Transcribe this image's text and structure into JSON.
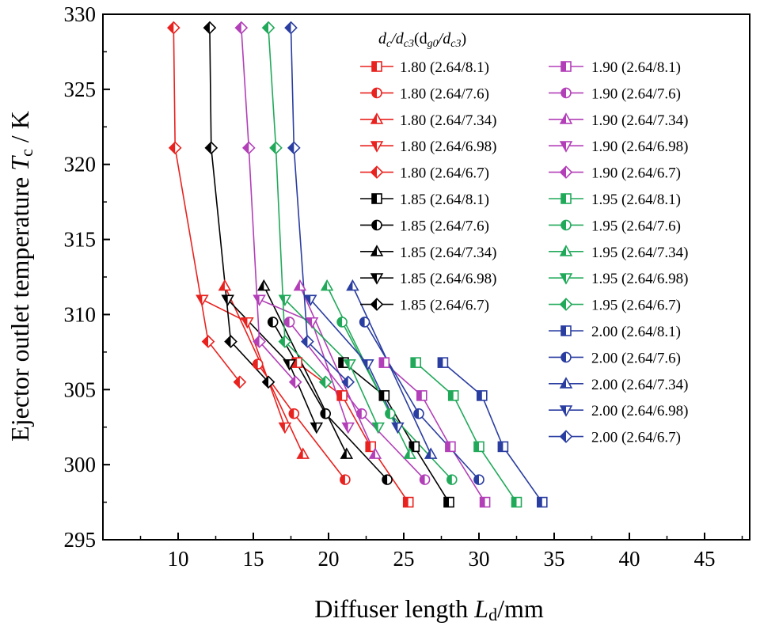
{
  "chart_data": {
    "type": "line",
    "xlabel": "Diffuser length L_d/mm",
    "xlabel_prefix": "Diffuser length ",
    "xlabel_var": "L",
    "xlabel_sub": "d",
    "xlabel_suffix": "/mm",
    "ylabel": "Ejector outlet temperature T_c / K",
    "ylabel_prefix": "Ejector outlet temperature ",
    "ylabel_var": "T",
    "ylabel_sub": "c",
    "ylabel_suffix": " / K",
    "xlim": [
      5,
      48
    ],
    "ylim": [
      295,
      330
    ],
    "xticks": [
      10,
      15,
      20,
      25,
      30,
      35,
      40,
      45
    ],
    "yticks": [
      295,
      300,
      305,
      310,
      315,
      320,
      325,
      330
    ],
    "legend_title": "dc/dc3(dg0/dc3)",
    "legend_title_parts": {
      "a": "d",
      "a_sub": "c",
      "b": "/d",
      "b_sub": "c3",
      "c": "(d",
      "c_sub": "g0",
      "d": "/d",
      "d_sub": "c3",
      "e": ")"
    },
    "colors": {
      "1.80": "#e8221f",
      "1.85": "#000000",
      "1.90": "#b23fb8",
      "1.95": "#21a95a",
      "2.00": "#2a3da0"
    },
    "series": [
      {
        "name": "1.80 (2.64/8.1)",
        "group": "1.80",
        "marker": "square",
        "x": [
          17.9,
          20.9,
          22.8,
          25.3
        ],
        "y": [
          306.8,
          304.6,
          301.2,
          297.5
        ]
      },
      {
        "name": "1.80 (2.64/7.6)",
        "group": "1.80",
        "marker": "circle",
        "x": [
          15.3,
          17.7,
          21.1
        ],
        "y": [
          306.7,
          303.4,
          299.0
        ]
      },
      {
        "name": "1.80 (2.64/7.34)",
        "group": "1.80",
        "marker": "triangle-up",
        "x": [
          13.1,
          18.3
        ],
        "y": [
          311.9,
          300.7
        ]
      },
      {
        "name": "1.80 (2.64/6.98)",
        "group": "1.80",
        "marker": "triangle-down",
        "x": [
          11.6,
          14.6,
          17.1
        ],
        "y": [
          311.0,
          309.5,
          302.5
        ]
      },
      {
        "name": "1.80 (2.64/6.7)",
        "group": "1.80",
        "marker": "diamond",
        "x": [
          9.7,
          9.8,
          12.0,
          14.1
        ],
        "y": [
          329.1,
          321.1,
          308.2,
          305.5
        ]
      },
      {
        "name": "1.85 (2.64/8.1)",
        "group": "1.85",
        "marker": "square",
        "x": [
          21.0,
          23.7,
          25.7,
          28.0
        ],
        "y": [
          306.8,
          304.6,
          301.2,
          297.5
        ]
      },
      {
        "name": "1.85 (2.64/7.6)",
        "group": "1.85",
        "marker": "circle",
        "x": [
          16.3,
          19.8,
          23.9
        ],
        "y": [
          309.5,
          303.4,
          299.0
        ]
      },
      {
        "name": "1.85 (2.64/7.34)",
        "group": "1.85",
        "marker": "triangle-up",
        "x": [
          15.7,
          21.2
        ],
        "y": [
          311.9,
          300.7
        ]
      },
      {
        "name": "1.85 (2.64/6.98)",
        "group": "1.85",
        "marker": "triangle-down",
        "x": [
          13.3,
          17.4,
          19.2
        ],
        "y": [
          311.0,
          306.7,
          302.5
        ]
      },
      {
        "name": "1.85 (2.64/6.7)",
        "group": "1.85",
        "marker": "diamond",
        "x": [
          12.1,
          12.2,
          13.5,
          16.0
        ],
        "y": [
          329.1,
          321.1,
          308.2,
          305.5
        ]
      },
      {
        "name": "1.90 (2.64/8.1)",
        "group": "1.90",
        "marker": "square",
        "x": [
          23.7,
          26.2,
          28.1,
          30.4
        ],
        "y": [
          306.8,
          304.6,
          301.2,
          297.5
        ]
      },
      {
        "name": "1.90 (2.64/7.6)",
        "group": "1.90",
        "marker": "circle",
        "x": [
          17.4,
          22.2,
          26.4
        ],
        "y": [
          309.5,
          303.4,
          299.0
        ]
      },
      {
        "name": "1.90 (2.64/7.34)",
        "group": "1.90",
        "marker": "triangle-up",
        "x": [
          18.1,
          23.1
        ],
        "y": [
          311.9,
          300.7
        ]
      },
      {
        "name": "1.90 (2.64/6.98)",
        "group": "1.90",
        "marker": "triangle-down",
        "x": [
          15.4,
          18.9,
          21.3
        ],
        "y": [
          311.0,
          309.5,
          302.5
        ]
      },
      {
        "name": "1.90 (2.64/6.7)",
        "group": "1.90",
        "marker": "diamond",
        "x": [
          14.2,
          14.7,
          15.4,
          17.8
        ],
        "y": [
          329.1,
          321.1,
          308.2,
          305.5
        ]
      },
      {
        "name": "1.95 (2.64/8.1)",
        "group": "1.95",
        "marker": "square",
        "x": [
          25.8,
          28.3,
          30.0,
          32.5
        ],
        "y": [
          306.8,
          304.6,
          301.2,
          297.5
        ]
      },
      {
        "name": "1.95 (2.64/7.6)",
        "group": "1.95",
        "marker": "circle",
        "x": [
          20.9,
          24.1,
          28.2
        ],
        "y": [
          309.5,
          303.4,
          299.0
        ]
      },
      {
        "name": "1.95 (2.64/7.34)",
        "group": "1.95",
        "marker": "triangle-up",
        "x": [
          19.9,
          25.4
        ],
        "y": [
          311.9,
          300.7
        ]
      },
      {
        "name": "1.95 (2.64/6.98)",
        "group": "1.95",
        "marker": "triangle-down",
        "x": [
          17.1,
          21.4,
          23.3
        ],
        "y": [
          311.0,
          306.7,
          302.5
        ]
      },
      {
        "name": "1.95 (2.64/6.7)",
        "group": "1.95",
        "marker": "diamond",
        "x": [
          16.0,
          16.5,
          17.1,
          19.8
        ],
        "y": [
          329.1,
          321.1,
          308.2,
          305.5
        ]
      },
      {
        "name": "2.00 (2.64/8.1)",
        "group": "2.00",
        "marker": "square",
        "x": [
          27.6,
          30.2,
          31.6,
          34.2
        ],
        "y": [
          306.8,
          304.6,
          301.2,
          297.5
        ]
      },
      {
        "name": "2.00 (2.64/7.6)",
        "group": "2.00",
        "marker": "circle",
        "x": [
          22.4,
          26.0,
          30.0
        ],
        "y": [
          309.5,
          303.4,
          299.0
        ]
      },
      {
        "name": "2.00 (2.64/7.34)",
        "group": "2.00",
        "marker": "triangle-up",
        "x": [
          21.6,
          26.8
        ],
        "y": [
          311.9,
          300.7
        ]
      },
      {
        "name": "2.00 (2.64/6.98)",
        "group": "2.00",
        "marker": "triangle-down",
        "x": [
          18.8,
          22.6,
          24.6
        ],
        "y": [
          311.0,
          306.7,
          302.5
        ]
      },
      {
        "name": "2.00 (2.64/6.7)",
        "group": "2.00",
        "marker": "diamond",
        "x": [
          17.5,
          17.7,
          18.6,
          21.3
        ],
        "y": [
          329.1,
          321.1,
          308.2,
          305.5
        ]
      }
    ]
  }
}
